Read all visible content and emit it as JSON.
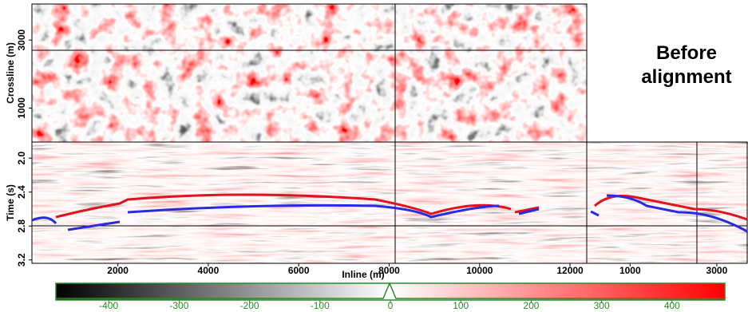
{
  "annotation": "Before alignment",
  "chart_data": [
    {
      "type": "image",
      "ylabel": "Crossline (m)",
      "ylim": [
        0,
        4060
      ],
      "yticks": [
        1000,
        3000
      ]
    },
    {
      "type": "image",
      "xlabel": "Inline (m)",
      "ylabel": "Time (s)",
      "xlim": [
        100,
        12370
      ],
      "xticks": [
        2000,
        4000,
        6000,
        8000,
        10000,
        12000
      ],
      "ylim": [
        3.24,
        1.81
      ],
      "yticks": [
        {
          "value": 2,
          "label": "2.0"
        },
        2.4,
        2.8,
        3.2
      ]
    },
    {
      "type": "image",
      "xlim": [
        0,
        3720
      ],
      "xticks": [
        1000,
        3000
      ]
    },
    {
      "type": "colorbar",
      "xlim": [
        -475,
        475
      ],
      "xticks": [
        -400,
        -300,
        -200,
        -100,
        0,
        100,
        200,
        300,
        400
      ]
    }
  ]
}
